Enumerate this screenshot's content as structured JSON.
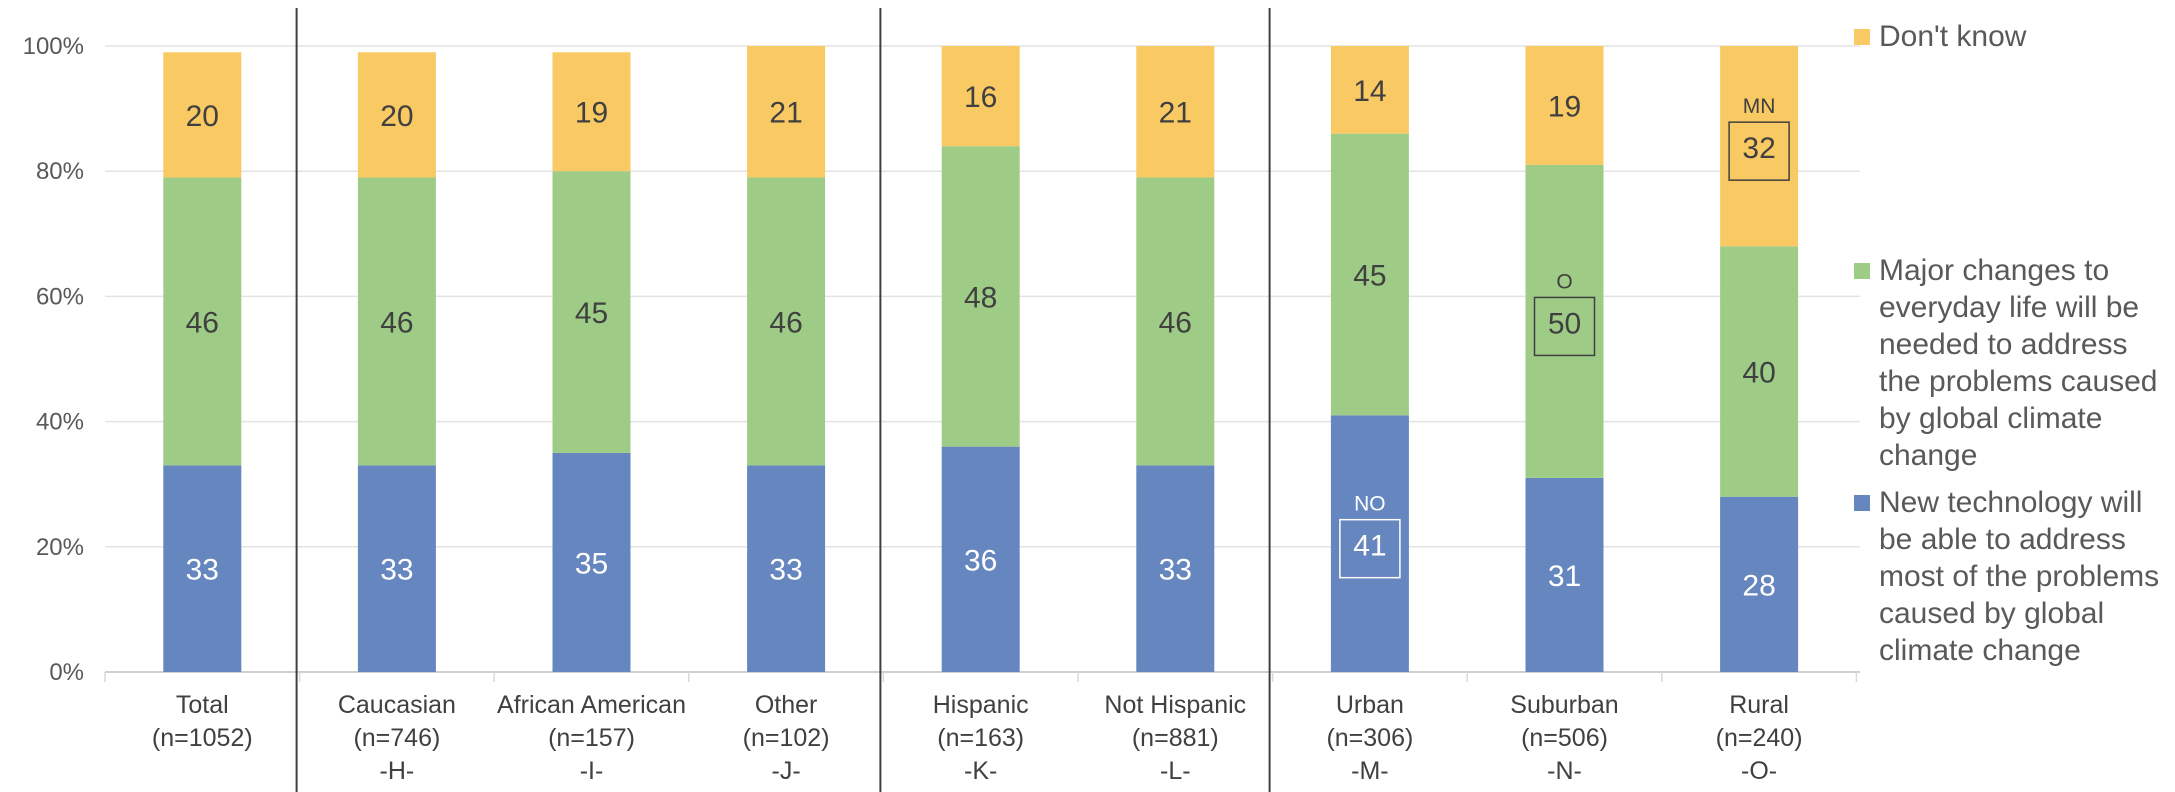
{
  "chart_data": {
    "type": "bar",
    "stacked": true,
    "ylim": [
      0,
      100
    ],
    "y_ticks": [
      "0%",
      "20%",
      "40%",
      "60%",
      "80%",
      "100%"
    ],
    "grid": true,
    "legend_position": "right",
    "categories": [
      {
        "name": "Total",
        "n": "(n=1052)",
        "code": ""
      },
      {
        "name": "Caucasian",
        "n": "(n=746)",
        "code": "-H-"
      },
      {
        "name": "African American",
        "n": "(n=157)",
        "code": "-I-"
      },
      {
        "name": "Other",
        "n": "(n=102)",
        "code": "-J-"
      },
      {
        "name": "Hispanic",
        "n": "(n=163)",
        "code": "-K-"
      },
      {
        "name": "Not Hispanic",
        "n": "(n=881)",
        "code": "-L-"
      },
      {
        "name": "Urban",
        "n": "(n=306)",
        "code": "-M-"
      },
      {
        "name": "Suburban",
        "n": "(n=506)",
        "code": "-N-"
      },
      {
        "name": "Rural",
        "n": "(n=240)",
        "code": "-O-"
      }
    ],
    "group_dividers_after": [
      0,
      3,
      5
    ],
    "series": [
      {
        "name": "New technology will be able to address most of the problems caused by global climate change",
        "color": "#6686BF",
        "label_color": "#ffffff",
        "values": [
          33,
          33,
          35,
          33,
          36,
          33,
          41,
          31,
          28
        ]
      },
      {
        "name": "Major changes to everyday life will be needed to address the problems caused by global climate change",
        "color": "#9ECC86",
        "label_color": "#404040",
        "values": [
          46,
          46,
          45,
          46,
          48,
          46,
          45,
          50,
          40
        ]
      },
      {
        "name": "Don't know",
        "color": "#F9C964",
        "label_color": "#404040",
        "values": [
          20,
          20,
          19,
          21,
          16,
          21,
          14,
          19,
          32
        ]
      }
    ],
    "significance": [
      {
        "category_index": 6,
        "series_index": 0,
        "letters": "NO"
      },
      {
        "category_index": 7,
        "series_index": 1,
        "letters": "O"
      },
      {
        "category_index": 8,
        "series_index": 2,
        "letters": "MN"
      }
    ],
    "legend": [
      {
        "series_index": 2,
        "label": "Don't know"
      },
      {
        "series_index": 1,
        "label": "Major changes to everyday life will be needed to address the problems caused by global climate change"
      },
      {
        "series_index": 0,
        "label": "New technology will be able to address most of the problems caused by global climate change"
      }
    ]
  }
}
